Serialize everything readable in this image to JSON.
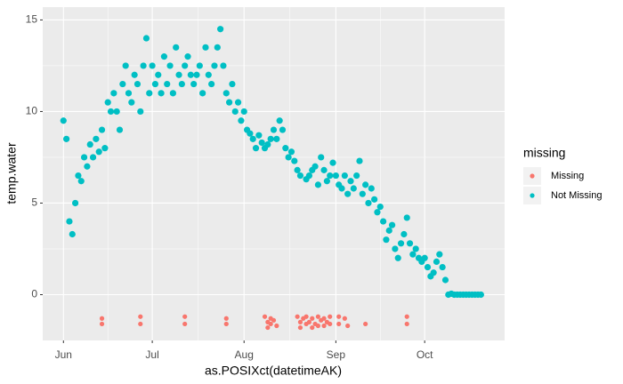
{
  "chart_data": {
    "type": "scatter",
    "x_label": "as.POSIXct(datetimeAK)",
    "y_label": "temp.water",
    "legend_title": "missing",
    "legend_position": "right",
    "grid": true,
    "xlim": [
      -7,
      149
    ],
    "xticks": [
      {
        "value": 0,
        "label": "Jun"
      },
      {
        "value": 30,
        "label": "Jul"
      },
      {
        "value": 61,
        "label": "Aug"
      },
      {
        "value": 92,
        "label": "Sep"
      },
      {
        "value": 122,
        "label": "Oct"
      }
    ],
    "ylim": [
      -2.5,
      15.7
    ],
    "yticks": [
      0,
      5,
      10,
      15
    ],
    "series": [
      {
        "name": "Missing",
        "color": "#F8766D",
        "x": [
          13,
          13,
          26,
          26,
          41,
          41,
          55,
          55,
          68,
          69,
          69,
          70,
          70,
          71,
          72,
          79,
          80,
          80,
          81,
          82,
          82,
          83,
          84,
          84,
          85,
          86,
          86,
          87,
          88,
          88,
          89,
          90,
          90,
          93,
          93,
          95,
          96,
          102,
          116,
          116
        ],
        "y": [
          -1.3,
          -1.6,
          -1.2,
          -1.6,
          -1.2,
          -1.6,
          -1.3,
          -1.6,
          -1.2,
          -1.5,
          -1.8,
          -1.3,
          -1.6,
          -1.4,
          -1.7,
          -1.2,
          -1.5,
          -1.8,
          -1.3,
          -1.6,
          -1.2,
          -1.5,
          -1.8,
          -1.3,
          -1.6,
          -1.2,
          -1.7,
          -1.4,
          -1.3,
          -1.7,
          -1.5,
          -1.2,
          -1.6,
          -1.2,
          -1.6,
          -1.3,
          -1.7,
          -1.6,
          -1.2,
          -1.6
        ]
      },
      {
        "name": "Not Missing",
        "color": "#00BFC4",
        "x": [
          0,
          1,
          2,
          3,
          4,
          5,
          6,
          7,
          8,
          9,
          10,
          11,
          12,
          13,
          14,
          15,
          16,
          17,
          18,
          19,
          20,
          21,
          22,
          23,
          24,
          25,
          26,
          27,
          28,
          29,
          30,
          31,
          32,
          33,
          34,
          35,
          36,
          37,
          38,
          39,
          40,
          41,
          42,
          43,
          44,
          45,
          46,
          47,
          48,
          49,
          50,
          51,
          52,
          53,
          54,
          55,
          56,
          57,
          58,
          59,
          60,
          61,
          62,
          63,
          64,
          65,
          66,
          67,
          68,
          69,
          70,
          71,
          72,
          73,
          74,
          75,
          76,
          77,
          78,
          79,
          80,
          81,
          82,
          83,
          84,
          85,
          86,
          87,
          88,
          89,
          90,
          91,
          92,
          93,
          94,
          95,
          96,
          97,
          98,
          99,
          100,
          101,
          102,
          103,
          104,
          105,
          106,
          107,
          108,
          109,
          110,
          111,
          112,
          113,
          114,
          115,
          116,
          117,
          118,
          119,
          120,
          121,
          122,
          123,
          124,
          125,
          126,
          127,
          128,
          129,
          130,
          131,
          132,
          133,
          134,
          135,
          136,
          137,
          138,
          139,
          140,
          141
        ],
        "y": [
          9.5,
          8.5,
          4,
          3.3,
          5,
          6.5,
          6.2,
          7.5,
          7,
          8.2,
          7.5,
          8.5,
          7.8,
          9,
          8,
          10.5,
          10,
          11,
          10,
          9,
          11.5,
          12.5,
          11,
          10.5,
          12,
          11.5,
          10,
          12.5,
          14,
          11,
          12.5,
          11.5,
          12,
          11,
          13,
          11.5,
          12.5,
          11,
          13.5,
          12,
          11.5,
          12.5,
          13,
          12,
          11.5,
          12,
          12.5,
          11,
          13.5,
          12,
          11.5,
          12.5,
          13.5,
          14.5,
          12.5,
          11,
          10.5,
          11.5,
          10,
          10.5,
          9.5,
          10,
          9,
          8.8,
          8.5,
          8,
          8.7,
          8.3,
          8,
          8.2,
          8.5,
          9,
          8.5,
          9.5,
          9,
          8,
          7.5,
          7.8,
          7.3,
          6.8,
          6.5,
          null,
          6.3,
          6.5,
          6.8,
          7,
          6,
          7.5,
          6.8,
          6.2,
          6.5,
          7.2,
          6.5,
          6,
          5.8,
          6.5,
          5.5,
          6.2,
          5.8,
          6.5,
          7.3,
          5.5,
          6,
          5,
          5.8,
          5.2,
          4.5,
          4.8,
          4,
          3,
          3.5,
          3.8,
          2.5,
          2,
          2.8,
          3.3,
          4.2,
          2.8,
          2.2,
          2.5,
          2,
          1.8,
          2,
          1.5,
          1,
          1.2,
          1.8,
          2.2,
          1.5,
          0.8,
          0,
          0.05,
          0,
          0,
          0,
          0,
          0,
          0,
          0,
          0,
          0,
          0
        ]
      }
    ]
  }
}
